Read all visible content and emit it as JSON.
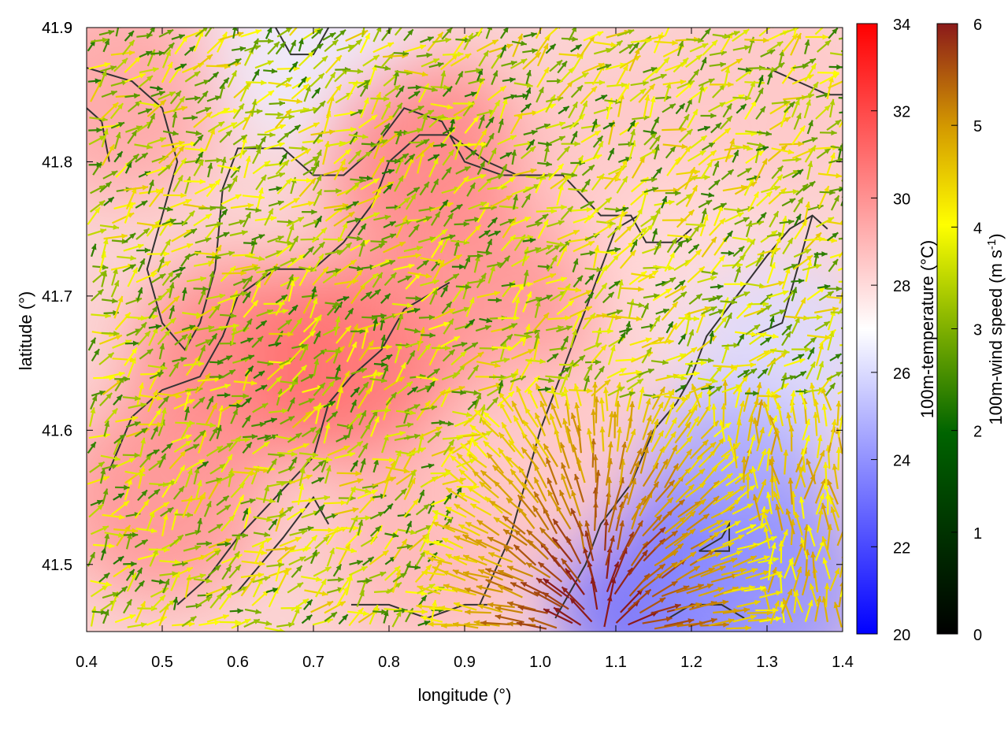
{
  "chart_data": {
    "type": "heatmap",
    "xlabel": "longitude (°)",
    "ylabel": "latitude (°)",
    "xlim": [
      0.4,
      1.4
    ],
    "ylim": [
      41.45,
      41.9
    ],
    "xticks": [
      "0.4",
      "0.5",
      "0.6",
      "0.7",
      "0.8",
      "0.9",
      "1.0",
      "1.1",
      "1.2",
      "1.3",
      "1.4"
    ],
    "yticks": [
      "41.5",
      "41.6",
      "41.7",
      "41.8",
      "41.9"
    ],
    "temperature": {
      "label": "100m-temperature (°C)",
      "range": [
        20,
        34
      ],
      "ticks": [
        "20",
        "22",
        "24",
        "26",
        "28",
        "30",
        "32",
        "34"
      ],
      "colors": [
        "#0000ff",
        "#ffffff",
        "#ff0000"
      ],
      "field_samples": [
        {
          "lon": 0.45,
          "lat": 41.85,
          "t": 29.5
        },
        {
          "lon": 0.7,
          "lat": 41.88,
          "t": 26.5
        },
        {
          "lon": 0.85,
          "lat": 41.8,
          "t": 30.5
        },
        {
          "lon": 0.6,
          "lat": 41.65,
          "t": 30.5
        },
        {
          "lon": 0.75,
          "lat": 41.65,
          "t": 31.0
        },
        {
          "lon": 0.95,
          "lat": 41.7,
          "t": 30.0
        },
        {
          "lon": 1.1,
          "lat": 41.8,
          "t": 28.5
        },
        {
          "lon": 1.3,
          "lat": 41.85,
          "t": 28.5
        },
        {
          "lon": 1.2,
          "lat": 41.72,
          "t": 28.0
        },
        {
          "lon": 1.32,
          "lat": 41.65,
          "t": 26.0
        },
        {
          "lon": 1.25,
          "lat": 41.55,
          "t": 24.5
        },
        {
          "lon": 1.15,
          "lat": 41.48,
          "t": 23.0
        },
        {
          "lon": 1.3,
          "lat": 41.48,
          "t": 24.0
        },
        {
          "lon": 0.5,
          "lat": 41.55,
          "t": 30.0
        },
        {
          "lon": 0.85,
          "lat": 41.52,
          "t": 29.0
        },
        {
          "lon": 1.0,
          "lat": 41.58,
          "t": 28.5
        }
      ]
    },
    "wind": {
      "label": "100m-wind speed (m s",
      "label_sup": "-1",
      "label_end": ")",
      "range": [
        0,
        6
      ],
      "ticks": [
        "0",
        "1",
        "2",
        "3",
        "4",
        "5",
        "6"
      ],
      "colors": [
        "#000000",
        "#006400",
        "#7fb000",
        "#ffff00",
        "#d49a00",
        "#8b1a1a"
      ]
    },
    "contours": [
      [
        [
          0.4,
          41.87
        ],
        [
          0.46,
          41.86
        ],
        [
          0.5,
          41.84
        ],
        [
          0.52,
          41.8
        ],
        [
          0.5,
          41.76
        ],
        [
          0.48,
          41.72
        ],
        [
          0.5,
          41.68
        ],
        [
          0.53,
          41.66
        ],
        [
          0.55,
          41.68
        ],
        [
          0.57,
          41.72
        ],
        [
          0.58,
          41.78
        ],
        [
          0.6,
          41.81
        ],
        [
          0.66,
          41.81
        ],
        [
          0.7,
          41.79
        ],
        [
          0.74,
          41.79
        ],
        [
          0.78,
          41.81
        ],
        [
          0.82,
          41.84
        ],
        [
          0.87,
          41.83
        ],
        [
          0.9,
          41.8
        ],
        [
          0.95,
          41.79
        ],
        [
          0.99,
          41.79
        ],
        [
          1.03,
          41.79
        ],
        [
          1.08,
          41.76
        ],
        [
          1.12,
          41.76
        ],
        [
          1.14,
          41.74
        ],
        [
          1.18,
          41.74
        ],
        [
          1.2,
          41.75
        ]
      ],
      [
        [
          0.4,
          41.84
        ],
        [
          0.42,
          41.83
        ],
        [
          0.43,
          41.8
        ]
      ],
      [
        [
          0.43,
          41.57
        ],
        [
          0.46,
          41.61
        ],
        [
          0.5,
          41.63
        ],
        [
          0.55,
          41.64
        ],
        [
          0.58,
          41.67
        ],
        [
          0.6,
          41.7
        ],
        [
          0.65,
          41.72
        ],
        [
          0.7,
          41.72
        ],
        [
          0.74,
          41.74
        ],
        [
          0.78,
          41.77
        ],
        [
          0.8,
          41.8
        ],
        [
          0.84,
          41.82
        ],
        [
          0.88,
          41.82
        ],
        [
          0.93,
          41.8
        ],
        [
          0.97,
          41.79
        ]
      ],
      [
        [
          0.52,
          41.47
        ],
        [
          0.56,
          41.49
        ],
        [
          0.6,
          41.52
        ],
        [
          0.65,
          41.55
        ],
        [
          0.7,
          41.58
        ],
        [
          0.72,
          41.62
        ],
        [
          0.75,
          41.64
        ],
        [
          0.79,
          41.66
        ],
        [
          0.82,
          41.69
        ],
        [
          0.85,
          41.7
        ],
        [
          0.88,
          41.71
        ]
      ],
      [
        [
          0.6,
          41.48
        ],
        [
          0.66,
          41.52
        ],
        [
          0.7,
          41.55
        ],
        [
          0.72,
          41.53
        ]
      ],
      [
        [
          0.75,
          41.47
        ],
        [
          0.8,
          41.47
        ],
        [
          0.85,
          41.46
        ],
        [
          0.9,
          41.47
        ],
        [
          0.93,
          41.47
        ]
      ],
      [
        [
          0.92,
          41.47
        ],
        [
          0.96,
          41.52
        ],
        [
          0.98,
          41.56
        ],
        [
          1.0,
          41.6
        ],
        [
          1.02,
          41.63
        ],
        [
          1.04,
          41.66
        ],
        [
          1.06,
          41.69
        ],
        [
          1.08,
          41.72
        ],
        [
          1.1,
          41.75
        ],
        [
          1.13,
          41.76
        ]
      ],
      [
        [
          1.02,
          41.46
        ],
        [
          1.06,
          41.5
        ],
        [
          1.08,
          41.53
        ],
        [
          1.12,
          41.56
        ],
        [
          1.15,
          41.6
        ],
        [
          1.18,
          41.62
        ],
        [
          1.2,
          41.64
        ],
        [
          1.22,
          41.67
        ],
        [
          1.26,
          41.7
        ],
        [
          1.3,
          41.73
        ],
        [
          1.33,
          41.75
        ],
        [
          1.36,
          41.76
        ],
        [
          1.38,
          41.75
        ]
      ],
      [
        [
          1.28,
          41.67
        ],
        [
          1.32,
          41.68
        ],
        [
          1.34,
          41.72
        ],
        [
          1.36,
          41.76
        ]
      ],
      [
        [
          1.17,
          41.46
        ],
        [
          1.2,
          41.47
        ],
        [
          1.24,
          41.47
        ],
        [
          1.27,
          41.46
        ]
      ],
      [
        [
          1.21,
          41.51
        ],
        [
          1.24,
          41.52
        ],
        [
          1.25,
          41.53
        ],
        [
          1.25,
          41.51
        ],
        [
          1.21,
          41.51
        ]
      ],
      [
        [
          1.3,
          41.87
        ],
        [
          1.34,
          41.86
        ],
        [
          1.38,
          41.85
        ],
        [
          1.4,
          41.85
        ]
      ],
      [
        [
          0.65,
          41.9
        ],
        [
          0.67,
          41.88
        ],
        [
          0.7,
          41.88
        ],
        [
          0.72,
          41.9
        ]
      ]
    ]
  }
}
